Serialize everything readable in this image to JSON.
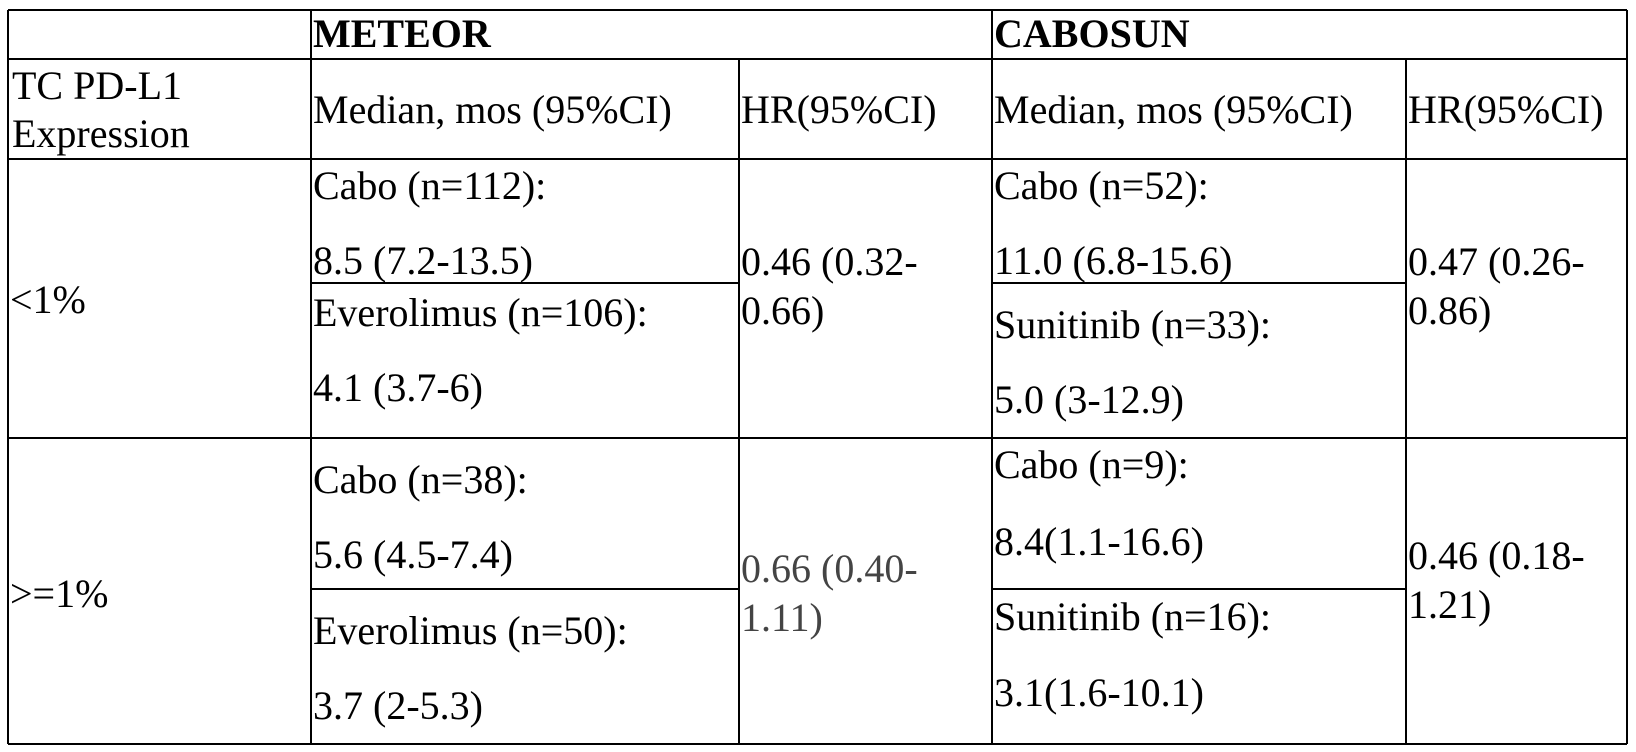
{
  "table": {
    "groups": [
      "METEOR",
      "CABOSUN"
    ],
    "header": [
      "TC PD-L1 Expression",
      "Median, mos (95%CI)",
      "HR(95%CI)",
      "Median, mos (95%CI)",
      "HR(95%CI)"
    ],
    "rows": [
      {
        "label": "<1%",
        "meteor": {
          "arms": [
            {
              "name": "Cabo (n=112):",
              "median": "8.5 (7.2-13.5)"
            },
            {
              "name": "Everolimus (n=106):",
              "median": "4.1 (3.7-6)"
            }
          ],
          "hr": "0.46 (0.32-0.66)"
        },
        "cabosun": {
          "arms": [
            {
              "name": "Cabo (n=52):",
              "median": "11.0 (6.8-15.6)"
            },
            {
              "name": "Sunitinib (n=33):",
              "median": "5.0 (3-12.9)"
            }
          ],
          "hr": "0.47 (0.26-0.86)"
        }
      },
      {
        "label": ">=1%",
        "meteor": {
          "arms": [
            {
              "name": "Cabo (n=38):",
              "median": "5.6 (4.5-7.4)"
            },
            {
              "name": "Everolimus (n=50):",
              "median": "3.7 (2-5.3)"
            }
          ],
          "hr": "0.66 (0.40-1.11)"
        },
        "cabosun": {
          "arms": [
            {
              "name": "Cabo (n=9):",
              "median": "8.4(1.1-16.6)"
            },
            {
              "name": "Sunitinib (n=16):",
              "median": "3.1(1.6-10.1)"
            }
          ],
          "hr": "0.46 (0.18-1.21)"
        }
      }
    ]
  }
}
